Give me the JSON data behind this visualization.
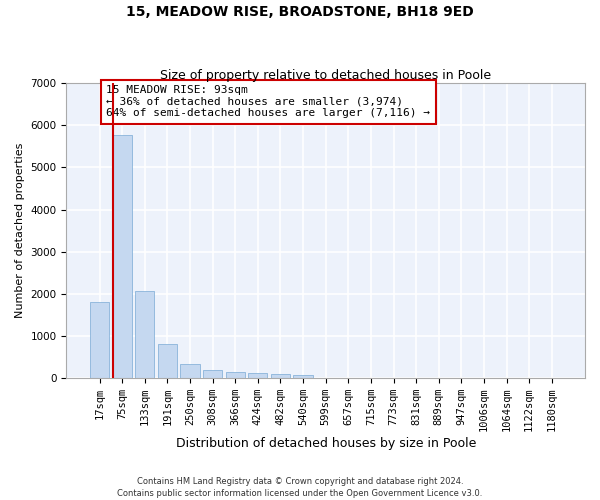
{
  "title_line1": "15, MEADOW RISE, BROADSTONE, BH18 9ED",
  "title_line2": "Size of property relative to detached houses in Poole",
  "xlabel": "Distribution of detached houses by size in Poole",
  "ylabel": "Number of detached properties",
  "bar_color": "#c5d8f0",
  "bar_edge_color": "#7aaad4",
  "highlight_line_color": "#cc0000",
  "categories": [
    "17sqm",
    "75sqm",
    "133sqm",
    "191sqm",
    "250sqm",
    "308sqm",
    "366sqm",
    "424sqm",
    "482sqm",
    "540sqm",
    "599sqm",
    "657sqm",
    "715sqm",
    "773sqm",
    "831sqm",
    "889sqm",
    "947sqm",
    "1006sqm",
    "1064sqm",
    "1122sqm",
    "1180sqm"
  ],
  "values": [
    1800,
    5780,
    2060,
    800,
    340,
    200,
    130,
    110,
    100,
    80,
    5,
    3,
    2,
    1,
    1,
    1,
    0,
    0,
    0,
    0,
    0
  ],
  "highlight_index": 1,
  "annotation_text": "15 MEADOW RISE: 93sqm\n← 36% of detached houses are smaller (3,974)\n64% of semi-detached houses are larger (7,116) →",
  "ylim": [
    0,
    7000
  ],
  "yticks": [
    0,
    1000,
    2000,
    3000,
    4000,
    5000,
    6000,
    7000
  ],
  "background_color": "#edf2fb",
  "grid_color": "#ffffff",
  "footer_text": "Contains HM Land Registry data © Crown copyright and database right 2024.\nContains public sector information licensed under the Open Government Licence v3.0.",
  "title_fontsize": 10,
  "subtitle_fontsize": 9,
  "xlabel_fontsize": 9,
  "ylabel_fontsize": 8,
  "tick_fontsize": 7.5,
  "annotation_fontsize": 8
}
